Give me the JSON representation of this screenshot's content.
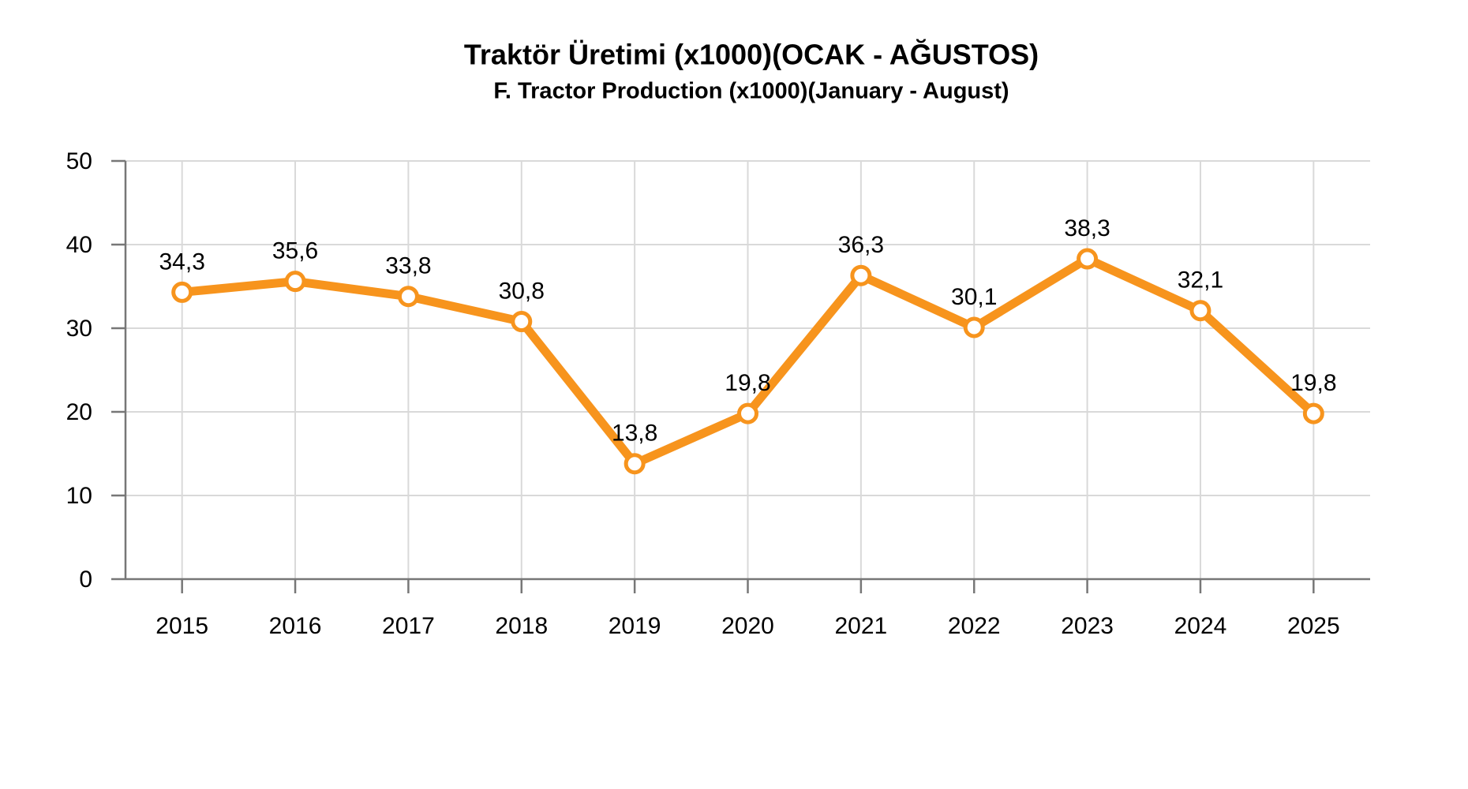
{
  "chart_data": {
    "type": "line",
    "title": "Traktör Üretimi (x1000)(OCAK - AĞUSTOS)",
    "subtitle": "F. Tractor Production (x1000)(January - August)",
    "categories": [
      "2015",
      "2016",
      "2017",
      "2018",
      "2019",
      "2020",
      "2021",
      "2022",
      "2023",
      "2024",
      "2025"
    ],
    "values": [
      34.3,
      35.6,
      33.8,
      30.8,
      13.8,
      19.8,
      36.3,
      30.1,
      38.3,
      32.1,
      19.8
    ],
    "value_labels": [
      "34,3",
      "35,6",
      "33,8",
      "30,8",
      "13,8",
      "19,8",
      "36,3",
      "30,1",
      "38,3",
      "32,1",
      "19,8"
    ],
    "color": "#f7941d",
    "ylim": [
      0,
      50
    ],
    "yticks": [
      0,
      10,
      20,
      30,
      40,
      50
    ],
    "grid": true
  }
}
